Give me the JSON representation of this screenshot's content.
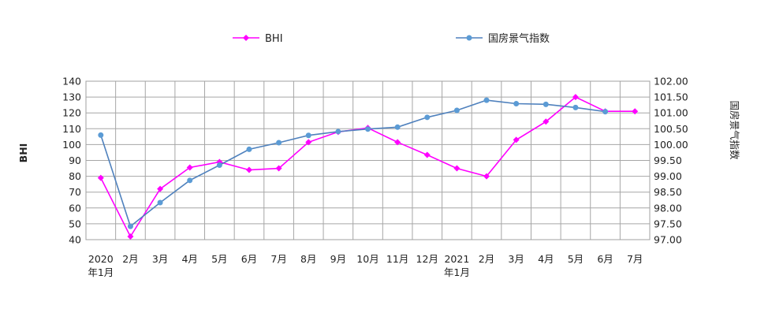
{
  "chart_data": {
    "type": "line",
    "categories": [
      [
        "2020",
        "年1月"
      ],
      [
        "2月"
      ],
      [
        "3月"
      ],
      [
        "4月"
      ],
      [
        "5月"
      ],
      [
        "6月"
      ],
      [
        "7月"
      ],
      [
        "8月"
      ],
      [
        "9月"
      ],
      [
        "10月"
      ],
      [
        "11月"
      ],
      [
        "12月"
      ],
      [
        "2021",
        "年1月"
      ],
      [
        "2月"
      ],
      [
        "3月"
      ],
      [
        "4月"
      ],
      [
        "5月"
      ],
      [
        "6月"
      ],
      [
        "7月"
      ]
    ],
    "series": [
      {
        "name": "BHI",
        "axis": "left",
        "color": "#ff00ff",
        "marker": "diamond",
        "values": [
          79,
          42,
          72,
          85.5,
          89,
          84,
          85,
          101.5,
          108,
          110.5,
          101.5,
          93.5,
          85,
          80,
          103,
          114.5,
          130,
          121,
          121
        ]
      },
      {
        "name": "国房景气指数",
        "axis": "right",
        "color": "#4f81bd",
        "marker_color": "#5b9bd5",
        "marker": "circle",
        "values": [
          100.3,
          97.42,
          98.17,
          98.87,
          99.35,
          99.85,
          100.06,
          100.29,
          100.41,
          100.49,
          100.55,
          100.86,
          101.08,
          101.4,
          101.29,
          101.27,
          101.17,
          101.04,
          null
        ]
      }
    ],
    "ylabel": "BHI",
    "y2label": "国房景气指数",
    "ylim": [
      40,
      140
    ],
    "yticks": [
      40,
      50,
      60,
      70,
      80,
      90,
      100,
      110,
      120,
      130,
      140
    ],
    "y2lim": [
      97.0,
      102.0
    ],
    "y2ticks": [
      "97.00",
      "97.50",
      "98.00",
      "98.50",
      "99.00",
      "99.50",
      "100.00",
      "100.50",
      "101.00",
      "101.50",
      "102.00"
    ],
    "grid": true,
    "legend": "top"
  }
}
